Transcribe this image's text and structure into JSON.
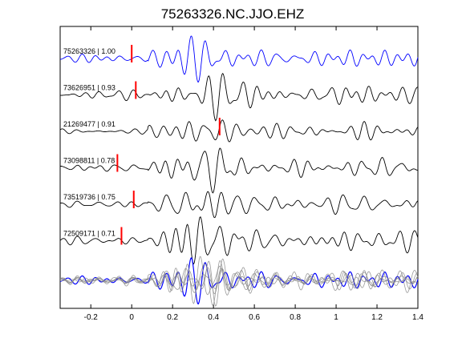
{
  "chart_data": {
    "type": "line",
    "title": "75263326.NC.JJO.EHZ",
    "xlabel": "",
    "ylabel": "",
    "xlim": [
      -0.35,
      1.4
    ],
    "x_ticks": [
      -0.2,
      0,
      0.2,
      0.4,
      0.6,
      0.8,
      1,
      1.2,
      1.4
    ],
    "x_tick_labels": [
      "-0.2",
      "0",
      "0.2",
      "0.4",
      "0.6",
      "0.8",
      "1",
      "1.2",
      "1.4"
    ],
    "grid": false,
    "colors": {
      "reference": "#0000ff",
      "trace": "#000000",
      "pick": "#ff0000",
      "overlay": "#888888"
    },
    "traces": [
      {
        "event_id": "75263326",
        "correlation": "1.00",
        "label": "75263326 | 1.00",
        "pick_time": 0.0,
        "reference": true
      },
      {
        "event_id": "73626951",
        "correlation": "0.93",
        "label": "73626951 | 0.93",
        "pick_time": 0.02,
        "reference": false
      },
      {
        "event_id": "21269477",
        "correlation": "0.91",
        "label": "21269477 | 0.91",
        "pick_time": 0.43,
        "reference": false
      },
      {
        "event_id": "73098811",
        "correlation": "0.78",
        "label": "73098811 | 0.78",
        "pick_time": -0.07,
        "reference": false
      },
      {
        "event_id": "73519736",
        "correlation": "0.75",
        "label": "73519736 | 0.75",
        "pick_time": 0.01,
        "reference": false
      },
      {
        "event_id": "72509171",
        "correlation": "0.71",
        "label": "72509171 | 0.71",
        "pick_time": -0.05,
        "reference": false
      }
    ],
    "stack": {
      "description_visible": false
    }
  }
}
